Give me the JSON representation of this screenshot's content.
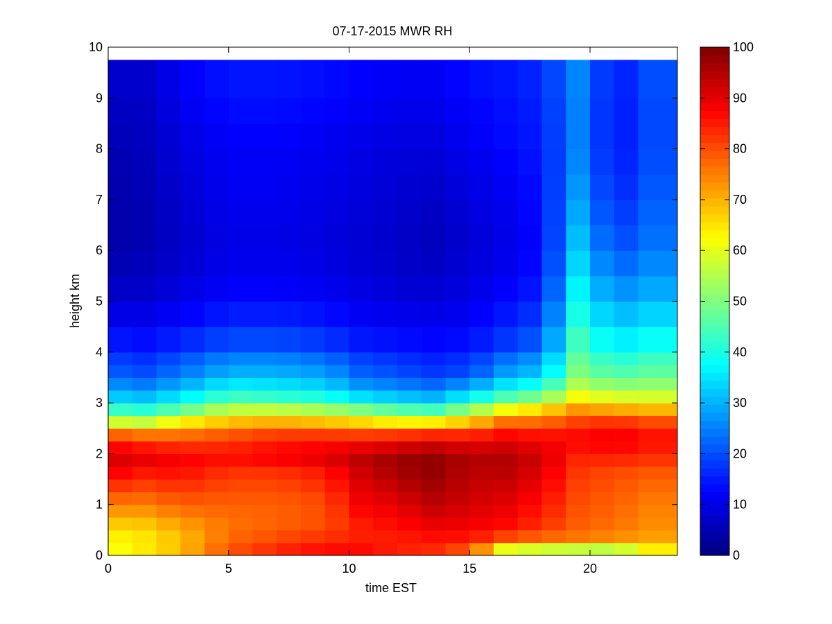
{
  "chart_data": {
    "type": "heatmap",
    "title": "07-17-2015 MWR RH",
    "xlabel": "time EST",
    "ylabel": "height km",
    "xlim": [
      0,
      23.6
    ],
    "ylim": [
      0,
      10
    ],
    "x_ticks": [
      "0",
      "5",
      "10",
      "15",
      "20"
    ],
    "y_ticks": [
      "0",
      "1",
      "2",
      "3",
      "4",
      "5",
      "6",
      "7",
      "8",
      "9",
      "10"
    ],
    "colorbar": {
      "min": 0,
      "max": 100,
      "ticks": [
        "0",
        "10",
        "20",
        "30",
        "40",
        "50",
        "60",
        "70",
        "80",
        "90",
        "100"
      ],
      "colormap": "jet"
    },
    "grid": false,
    "time_edges": [
      0,
      1,
      2,
      3,
      4,
      5,
      6,
      7,
      8,
      9,
      10,
      11,
      12,
      13,
      14,
      15,
      16,
      17,
      18,
      19,
      20,
      21,
      22,
      23.6
    ],
    "height_edges": [
      0,
      0.25,
      0.5,
      0.75,
      1,
      1.25,
      1.5,
      1.75,
      2,
      2.25,
      2.5,
      2.75,
      3,
      3.25,
      3.5,
      3.75,
      4,
      4.5,
      5,
      5.5,
      6,
      6.5,
      7,
      7.5,
      8,
      8.5,
      9,
      9.75
    ],
    "height_profile_km": [
      0,
      0.25,
      0.5,
      1,
      1.6,
      1.9,
      2.3,
      2.6,
      2.9,
      3.2,
      3.6,
      4.2,
      5,
      6,
      7,
      8,
      9,
      9.75
    ],
    "rh_profiles": [
      {
        "t": 0,
        "rh": [
          60,
          62,
          65,
          75,
          88,
          92,
          85,
          60,
          42,
          30,
          22,
          15,
          8,
          4,
          4,
          5,
          7,
          8
        ]
      },
      {
        "t": 1.5,
        "rh": [
          65,
          64,
          66,
          75,
          85,
          90,
          82,
          58,
          40,
          28,
          20,
          14,
          8,
          5,
          5,
          6,
          7,
          8
        ]
      },
      {
        "t": 3,
        "rh": [
          70,
          68,
          70,
          78,
          86,
          88,
          80,
          65,
          45,
          32,
          24,
          16,
          10,
          7,
          8,
          9,
          11,
          12
        ]
      },
      {
        "t": 5,
        "rh": [
          80,
          78,
          76,
          78,
          82,
          86,
          82,
          70,
          55,
          40,
          30,
          20,
          13,
          10,
          11,
          12,
          14,
          15
        ]
      },
      {
        "t": 7,
        "rh": [
          85,
          82,
          78,
          78,
          82,
          88,
          85,
          72,
          55,
          38,
          30,
          20,
          13,
          10,
          11,
          12,
          14,
          15
        ]
      },
      {
        "t": 9,
        "rh": [
          88,
          85,
          80,
          80,
          85,
          90,
          86,
          70,
          52,
          36,
          28,
          18,
          12,
          9,
          10,
          11,
          13,
          14
        ]
      },
      {
        "t": 10.5,
        "rh": [
          88,
          85,
          84,
          88,
          92,
          94,
          86,
          68,
          48,
          30,
          22,
          15,
          10,
          8,
          9,
          10,
          12,
          13
        ]
      },
      {
        "t": 12,
        "rh": [
          85,
          84,
          86,
          90,
          96,
          97,
          88,
          65,
          44,
          28,
          20,
          14,
          9,
          7,
          8,
          9,
          11,
          12
        ]
      },
      {
        "t": 13.5,
        "rh": [
          82,
          85,
          88,
          94,
          98,
          98,
          90,
          66,
          42,
          26,
          18,
          13,
          9,
          6,
          7,
          9,
          11,
          12
        ]
      },
      {
        "t": 15,
        "rh": [
          75,
          84,
          88,
          92,
          94,
          95,
          88,
          70,
          50,
          32,
          20,
          14,
          10,
          8,
          9,
          11,
          13,
          14
        ]
      },
      {
        "t": 16.5,
        "rh": [
          45,
          76,
          86,
          90,
          94,
          95,
          90,
          78,
          60,
          40,
          28,
          18,
          13,
          10,
          11,
          13,
          14,
          15
        ]
      },
      {
        "t": 18,
        "rh": [
          42,
          74,
          82,
          86,
          90,
          92,
          88,
          78,
          65,
          45,
          32,
          22,
          16,
          13,
          14,
          15,
          16,
          17
        ]
      },
      {
        "t": 19.5,
        "rh": [
          40,
          74,
          78,
          80,
          82,
          84,
          88,
          82,
          72,
          58,
          50,
          44,
          38,
          32,
          28,
          25,
          25,
          26
        ]
      },
      {
        "t": 21,
        "rh": [
          40,
          72,
          76,
          78,
          80,
          84,
          90,
          84,
          70,
          55,
          45,
          36,
          28,
          20,
          16,
          14,
          14,
          15
        ]
      },
      {
        "t": 23.6,
        "rh": [
          65,
          70,
          72,
          74,
          78,
          82,
          86,
          80,
          68,
          55,
          48,
          40,
          32,
          26,
          24,
          22,
          22,
          23
        ]
      }
    ]
  }
}
